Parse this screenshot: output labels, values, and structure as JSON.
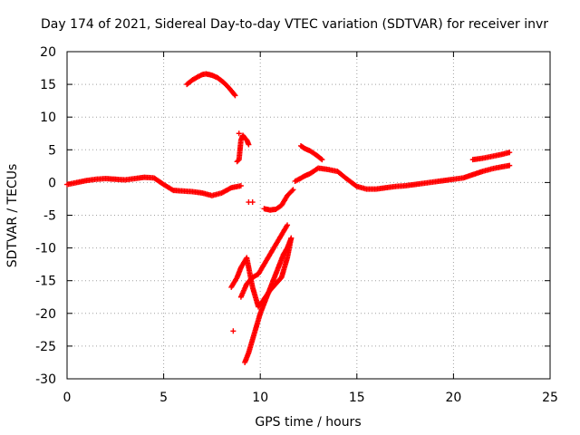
{
  "chart_data": {
    "type": "scatter",
    "title": "Day 174 of 2021, Sidereal Day-to-day VTEC variation (SDTVAR) for receiver invr",
    "xlabel": "GPS time / hours",
    "ylabel": "SDTVAR / TECUs",
    "xlim": [
      0,
      25
    ],
    "ylim": [
      -30,
      20
    ],
    "xticks": [
      0,
      5,
      10,
      15,
      20,
      25
    ],
    "xtick_labels": [
      "0",
      "5",
      "10",
      "15",
      "20",
      "25"
    ],
    "yticks": [
      20,
      15,
      10,
      5,
      0,
      -5,
      -10,
      -15,
      -20,
      -25,
      -30
    ],
    "ytick_labels": [
      "20",
      "15",
      "10",
      "5",
      "0",
      "-5",
      "-10",
      "-15",
      "-20",
      "-25",
      "-30"
    ],
    "grid": true,
    "marker": "plus",
    "color": "#ff0000",
    "series": [
      {
        "name": "main-trace",
        "x": [
          0,
          0.5,
          1,
          1.5,
          2,
          2.5,
          3,
          3.5,
          4,
          4.5,
          5,
          5.5,
          6,
          6.5,
          7,
          7.5,
          8,
          8.5,
          9
        ],
        "y": [
          -0.3,
          0,
          0.3,
          0.5,
          0.6,
          0.5,
          0.4,
          0.6,
          0.8,
          0.7,
          -0.3,
          -1.2,
          -1.3,
          -1.4,
          -1.6,
          -2,
          -1.6,
          -0.8,
          -0.5
        ]
      },
      {
        "name": "upper-arc",
        "x": [
          6.2,
          6.5,
          6.8,
          7,
          7.2,
          7.5,
          7.8,
          8.1,
          8.4,
          8.7
        ],
        "y": [
          15,
          15.7,
          16.2,
          16.5,
          16.6,
          16.4,
          16,
          15.3,
          14.4,
          13.3
        ]
      },
      {
        "name": "rising-arc",
        "x": [
          8.8,
          8.9,
          9,
          9.1,
          9.2,
          9.3,
          9.4
        ],
        "y": [
          3.2,
          3.5,
          6.5,
          7.2,
          6.8,
          6.5,
          5.8
        ]
      },
      {
        "name": "dip-arc",
        "x": [
          10.2,
          10.5,
          10.8,
          11.1,
          11.4,
          11.7
        ],
        "y": [
          -4,
          -4.2,
          -4.1,
          -3.5,
          -2,
          -1.1
        ]
      },
      {
        "name": "post-trace",
        "x": [
          11.8,
          12,
          12.3,
          12.6,
          13,
          13.5,
          14,
          14.5,
          15,
          15.5,
          16,
          16.5,
          17,
          17.5,
          18,
          18.5,
          19,
          19.5,
          20,
          20.5,
          21,
          21.5,
          22,
          22.5,
          22.9
        ],
        "y": [
          0.2,
          0.5,
          1,
          1.4,
          2.2,
          2,
          1.7,
          0.5,
          -0.6,
          -1,
          -1,
          -0.8,
          -0.6,
          -0.5,
          -0.3,
          -0.1,
          0.1,
          0.3,
          0.5,
          0.7,
          1.2,
          1.7,
          2.1,
          2.4,
          2.6
        ]
      },
      {
        "name": "upper-tail",
        "x": [
          21,
          21.5,
          22,
          22.5,
          22.9
        ],
        "y": [
          3.5,
          3.7,
          4,
          4.3,
          4.6
        ]
      },
      {
        "name": "late-arc",
        "x": [
          12.1,
          12.3,
          12.6,
          12.9,
          13.2
        ],
        "y": [
          5.6,
          5.2,
          4.8,
          4.2,
          3.5
        ]
      },
      {
        "name": "neg-arc-a",
        "x": [
          8.5,
          8.8,
          9,
          9.3,
          9.6,
          9.9,
          10.2,
          10.5,
          10.8,
          11.1,
          11.4,
          11.6
        ],
        "y": [
          -16,
          -14.5,
          -13,
          -11.5,
          -16,
          -19,
          -17.8,
          -16.5,
          -15.5,
          -14.5,
          -11.5,
          -8.5
        ]
      },
      {
        "name": "neg-arc-b",
        "x": [
          9,
          9.3,
          9.6,
          9.9,
          10.2,
          10.5,
          10.8,
          11.1,
          11.4
        ],
        "y": [
          -17.5,
          -15.5,
          -14.5,
          -14,
          -12.5,
          -11,
          -9.5,
          -8,
          -6.5
        ]
      },
      {
        "name": "neg-arc-c",
        "x": [
          9.2,
          9.4,
          9.6,
          9.8,
          10.0,
          10.2,
          10.4,
          10.6,
          10.8,
          11.0,
          11.2,
          11.4,
          11.6
        ],
        "y": [
          -27.5,
          -26,
          -24,
          -22,
          -20,
          -18.5,
          -17,
          -15.5,
          -14,
          -12.5,
          -11,
          -10,
          -8.5
        ]
      },
      {
        "name": "isolated-points",
        "x": [
          8.6,
          9.4,
          9.6,
          8.9
        ],
        "y": [
          -22.7,
          -3,
          -3,
          7.5
        ]
      }
    ]
  }
}
